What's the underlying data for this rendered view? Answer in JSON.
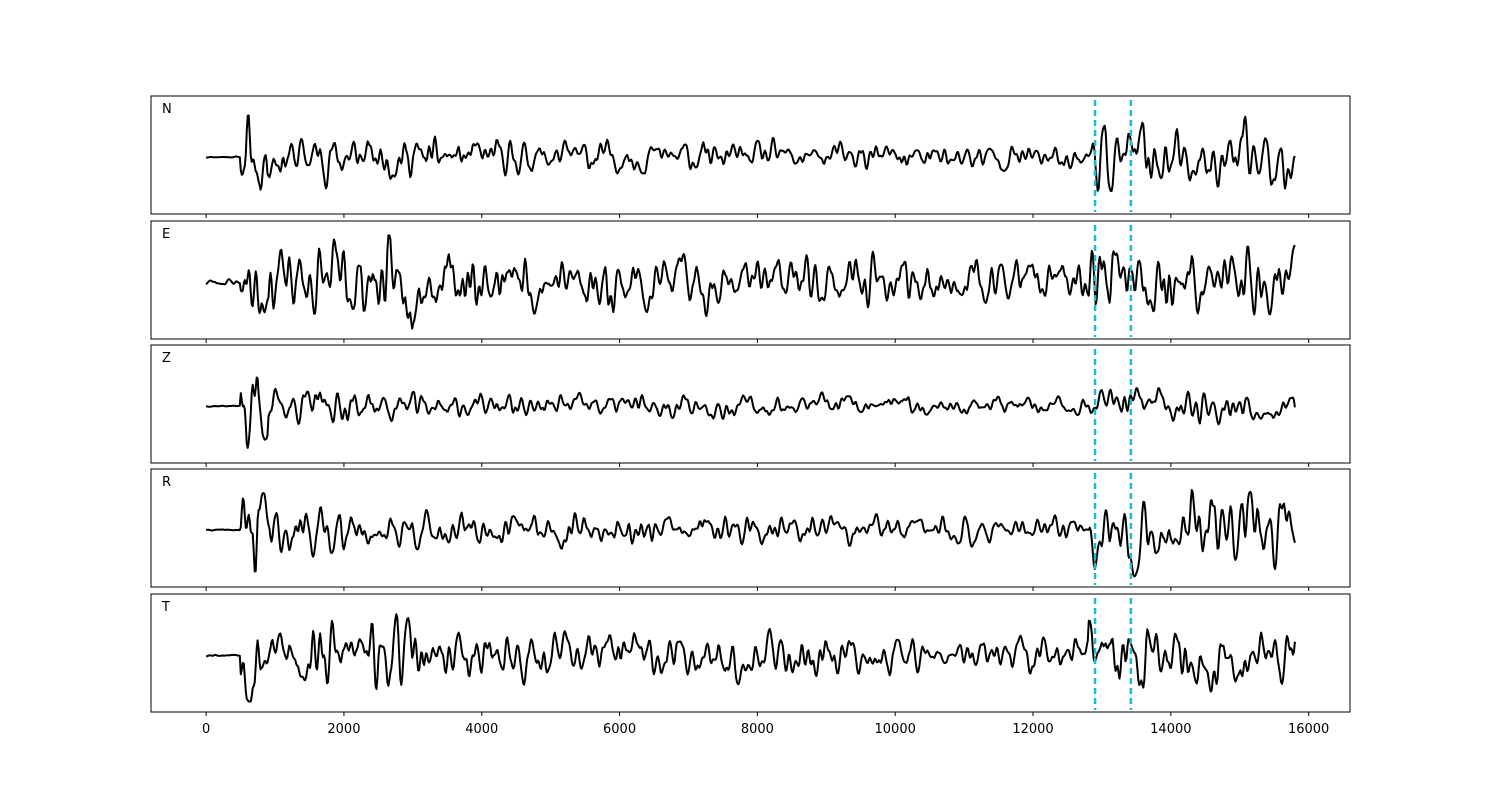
{
  "chart_data": {
    "type": "line",
    "channels": [
      {
        "name": "N",
        "seed": 11,
        "onset_amp": 1.0,
        "noise_amp": 0.32,
        "tail_amp": 0.55,
        "pre_amp": 0.01
      },
      {
        "name": "E",
        "seed": 23,
        "onset_amp": 0.8,
        "noise_amp": 0.55,
        "tail_amp": 0.55,
        "pre_amp": 0.06
      },
      {
        "name": "Z",
        "seed": 37,
        "onset_amp": 1.05,
        "noise_amp": 0.22,
        "tail_amp": 0.28,
        "pre_amp": 0.01
      },
      {
        "name": "R",
        "seed": 41,
        "onset_amp": 1.0,
        "noise_amp": 0.3,
        "tail_amp": 0.6,
        "pre_amp": 0.01
      },
      {
        "name": "T",
        "seed": 53,
        "onset_amp": 0.85,
        "noise_amp": 0.45,
        "tail_amp": 0.6,
        "pre_amp": 0.02
      }
    ],
    "x_range": [
      0,
      15800
    ],
    "xlim": [
      -800,
      16600
    ],
    "signal_onset_x": 500,
    "markers_x": [
      12900,
      13420
    ],
    "marker_color": "#17becf",
    "trace_color": "#000000",
    "xticks": [
      0,
      2000,
      4000,
      6000,
      8000,
      10000,
      12000,
      14000,
      16000
    ],
    "tick_labels": [
      "0",
      "2000",
      "4000",
      "6000",
      "8000",
      "10000",
      "12000",
      "14000",
      "16000"
    ],
    "shared_x": true,
    "grid": false
  }
}
